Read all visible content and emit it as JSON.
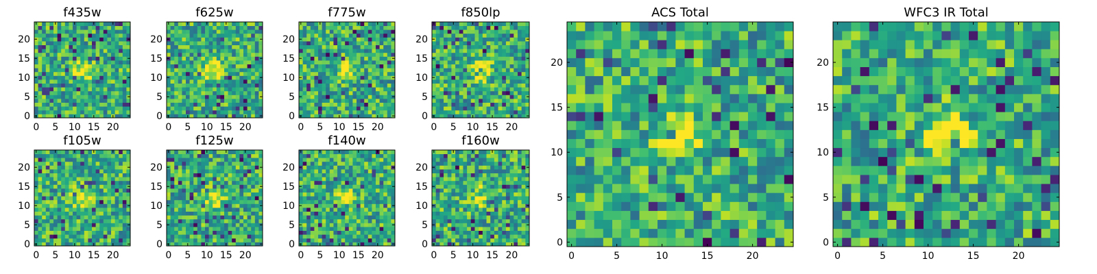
{
  "chart_data": [
    {
      "type": "heatmap",
      "title": "f435w",
      "seed": 101,
      "xticks": [
        0,
        5,
        10,
        15,
        20
      ],
      "yticks": [
        0,
        5,
        10,
        15,
        20
      ],
      "xlim": [
        -0.5,
        24.5
      ],
      "ylim": [
        -0.5,
        24.5
      ],
      "grid": false,
      "colormap": "viridis"
    },
    {
      "type": "heatmap",
      "title": "f625w",
      "seed": 202,
      "xticks": [
        0,
        5,
        10,
        15,
        20
      ],
      "yticks": [
        0,
        5,
        10,
        15,
        20
      ],
      "xlim": [
        -0.5,
        24.5
      ],
      "ylim": [
        -0.5,
        24.5
      ],
      "grid": false,
      "colormap": "viridis"
    },
    {
      "type": "heatmap",
      "title": "f775w",
      "seed": 303,
      "xticks": [
        0,
        5,
        10,
        15,
        20
      ],
      "yticks": [
        0,
        5,
        10,
        15,
        20
      ],
      "xlim": [
        -0.5,
        24.5
      ],
      "ylim": [
        -0.5,
        24.5
      ],
      "grid": false,
      "colormap": "viridis"
    },
    {
      "type": "heatmap",
      "title": "f850lp",
      "seed": 404,
      "xticks": [
        0,
        5,
        10,
        15,
        20
      ],
      "yticks": [
        0,
        5,
        10,
        15,
        20
      ],
      "xlim": [
        -0.5,
        24.5
      ],
      "ylim": [
        -0.5,
        24.5
      ],
      "grid": false,
      "colormap": "viridis"
    },
    {
      "type": "heatmap",
      "title": "f105w",
      "seed": 505,
      "xticks": [
        0,
        5,
        10,
        15,
        20
      ],
      "yticks": [
        0,
        5,
        10,
        15,
        20
      ],
      "xlim": [
        -0.5,
        24.5
      ],
      "ylim": [
        -0.5,
        24.5
      ],
      "grid": false,
      "colormap": "viridis"
    },
    {
      "type": "heatmap",
      "title": "f125w",
      "seed": 606,
      "xticks": [
        0,
        5,
        10,
        15,
        20
      ],
      "yticks": [
        0,
        5,
        10,
        15,
        20
      ],
      "xlim": [
        -0.5,
        24.5
      ],
      "ylim": [
        -0.5,
        24.5
      ],
      "grid": false,
      "colormap": "viridis"
    },
    {
      "type": "heatmap",
      "title": "f140w",
      "seed": 707,
      "xticks": [
        0,
        5,
        10,
        15,
        20
      ],
      "yticks": [
        0,
        5,
        10,
        15,
        20
      ],
      "xlim": [
        -0.5,
        24.5
      ],
      "ylim": [
        -0.5,
        24.5
      ],
      "grid": false,
      "colormap": "viridis"
    },
    {
      "type": "heatmap",
      "title": "f160w",
      "seed": 808,
      "xticks": [
        0,
        5,
        10,
        15,
        20
      ],
      "yticks": [
        0,
        5,
        10,
        15,
        20
      ],
      "xlim": [
        -0.5,
        24.5
      ],
      "ylim": [
        -0.5,
        24.5
      ],
      "grid": false,
      "colormap": "viridis"
    },
    {
      "type": "heatmap",
      "title": "ACS Total",
      "seed": 909,
      "xticks": [
        0,
        5,
        10,
        15,
        20
      ],
      "yticks": [
        0,
        5,
        10,
        15,
        20
      ],
      "xlim": [
        -0.5,
        24.5
      ],
      "ylim": [
        -0.5,
        24.5
      ],
      "grid": false,
      "colormap": "viridis"
    },
    {
      "type": "heatmap",
      "title": "WFC3 IR Total",
      "seed": 1010,
      "xticks": [
        0,
        5,
        10,
        15,
        20
      ],
      "yticks": [
        0,
        5,
        10,
        15,
        20
      ],
      "xlim": [
        -0.5,
        24.5
      ],
      "ylim": [
        -0.5,
        24.5
      ],
      "grid": false,
      "colormap": "viridis"
    }
  ]
}
